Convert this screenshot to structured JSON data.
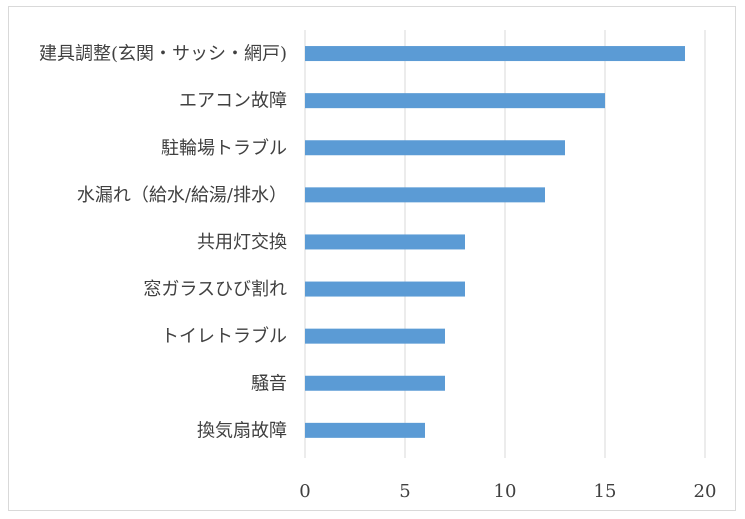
{
  "chart_data": {
    "type": "bar",
    "orientation": "horizontal",
    "categories": [
      "建具調整(玄関・サッシ・網戸)",
      "エアコン故障",
      "駐輪場トラブル",
      "水漏れ（給水/給湯/排水）",
      "共用灯交換",
      "窓ガラスひび割れ",
      "トイレトラブル",
      "騒音",
      "換気扇故障"
    ],
    "values": [
      19,
      15,
      13,
      12,
      8,
      8,
      7,
      7,
      6
    ],
    "xlim": [
      0,
      20
    ],
    "xticks": [
      "0",
      "5",
      "10",
      "15",
      "20"
    ],
    "title": "",
    "xlabel": "",
    "ylabel": "",
    "grid": "vertical",
    "legend": "none",
    "colors": {
      "bar": "#5b9bd5",
      "grid": "#d9d9d9",
      "text": "#404040"
    }
  }
}
